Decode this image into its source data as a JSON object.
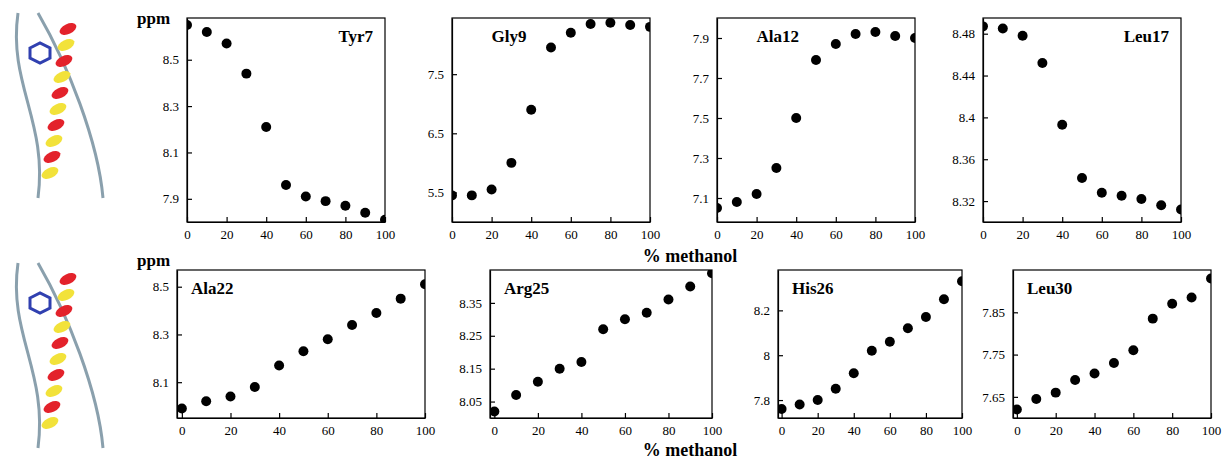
{
  "rows": [
    {
      "ylabel": "ppm",
      "xlabel": "% methanol"
    },
    {
      "ylabel": "ppm",
      "xlabel": "% methanol"
    }
  ],
  "chart_data": [
    {
      "type": "scatter",
      "title": "Tyr7",
      "color": "#000000",
      "marker": "circle",
      "x": [
        0,
        10,
        20,
        30,
        40,
        50,
        60,
        70,
        80,
        90,
        100
      ],
      "values": [
        8.65,
        8.62,
        8.57,
        8.44,
        8.21,
        7.96,
        7.91,
        7.89,
        7.87,
        7.84,
        7.81
      ],
      "xlim": [
        0,
        100
      ],
      "xticks": [
        0,
        20,
        40,
        60,
        80,
        100
      ],
      "ylim": [
        7.8,
        8.68
      ],
      "yticks": [
        7.9,
        8.1,
        8.3,
        8.5
      ]
    },
    {
      "type": "scatter",
      "title": "Gly9",
      "color": "#000000",
      "marker": "circle",
      "x": [
        0,
        10,
        20,
        30,
        40,
        50,
        60,
        70,
        80,
        90,
        100
      ],
      "values": [
        5.45,
        5.45,
        5.55,
        6.0,
        6.9,
        7.95,
        8.2,
        8.35,
        8.37,
        8.33,
        8.3
      ],
      "xlim": [
        0,
        100
      ],
      "xticks": [
        0,
        20,
        40,
        60,
        80,
        100
      ],
      "ylim": [
        5.0,
        8.45
      ],
      "yticks": [
        5.5,
        6.5,
        7.5
      ]
    },
    {
      "type": "scatter",
      "title": "Ala12",
      "color": "#000000",
      "marker": "circle",
      "x": [
        0,
        10,
        20,
        30,
        40,
        50,
        60,
        70,
        80,
        90,
        100
      ],
      "values": [
        7.05,
        7.08,
        7.12,
        7.25,
        7.5,
        7.79,
        7.87,
        7.92,
        7.93,
        7.91,
        7.9
      ],
      "xlim": [
        0,
        100
      ],
      "xticks": [
        0,
        20,
        40,
        60,
        80,
        100
      ],
      "ylim": [
        6.98,
        8.0
      ],
      "yticks": [
        7.1,
        7.3,
        7.5,
        7.7,
        7.9
      ]
    },
    {
      "type": "scatter",
      "title": "Leu17",
      "color": "#000000",
      "marker": "circle",
      "x": [
        0,
        10,
        20,
        30,
        40,
        50,
        60,
        70,
        80,
        90,
        100
      ],
      "values": [
        8.487,
        8.485,
        8.478,
        8.452,
        8.393,
        8.342,
        8.328,
        8.325,
        8.322,
        8.316,
        8.312
      ],
      "xlim": [
        0,
        100
      ],
      "xticks": [
        0,
        20,
        40,
        60,
        80,
        100
      ],
      "ylim": [
        8.3,
        8.495
      ],
      "yticks": [
        8.32,
        8.36,
        8.4,
        8.44,
        8.48
      ]
    },
    {
      "type": "scatter",
      "title": "Ala22",
      "color": "#000000",
      "marker": "circle",
      "x": [
        0,
        10,
        20,
        30,
        40,
        50,
        60,
        70,
        80,
        90,
        100
      ],
      "values": [
        7.99,
        8.02,
        8.04,
        8.08,
        8.17,
        8.23,
        8.28,
        8.34,
        8.39,
        8.45,
        8.51
      ],
      "xlim": [
        -2,
        100
      ],
      "xticks": [
        0,
        20,
        40,
        60,
        80,
        100
      ],
      "ylim": [
        7.95,
        8.57
      ],
      "yticks": [
        8.1,
        8.3,
        8.5
      ]
    },
    {
      "type": "scatter",
      "title": "Arg25",
      "color": "#000000",
      "marker": "circle",
      "x": [
        0,
        10,
        20,
        30,
        40,
        50,
        60,
        70,
        80,
        90,
        100
      ],
      "values": [
        8.02,
        8.07,
        8.11,
        8.15,
        8.17,
        8.27,
        8.3,
        8.32,
        8.36,
        8.4,
        8.44
      ],
      "xlim": [
        -2,
        100
      ],
      "xticks": [
        0,
        20,
        40,
        60,
        80,
        100
      ],
      "ylim": [
        8.0,
        8.45
      ],
      "yticks": [
        8.05,
        8.15,
        8.25,
        8.35
      ]
    },
    {
      "type": "scatter",
      "title": "His26",
      "color": "#000000",
      "marker": "circle",
      "x": [
        0,
        10,
        20,
        30,
        40,
        50,
        60,
        70,
        80,
        90,
        100
      ],
      "values": [
        7.76,
        7.78,
        7.8,
        7.85,
        7.92,
        8.02,
        8.06,
        8.12,
        8.17,
        8.25,
        8.33
      ],
      "xlim": [
        -2,
        100
      ],
      "xticks": [
        0,
        20,
        40,
        60,
        80,
        100
      ],
      "ylim": [
        7.72,
        8.38
      ],
      "yticks": [
        7.8,
        8,
        8.2
      ]
    },
    {
      "type": "scatter",
      "title": "Leu30",
      "color": "#000000",
      "marker": "circle",
      "x": [
        0,
        10,
        20,
        30,
        40,
        50,
        60,
        70,
        80,
        90,
        100
      ],
      "values": [
        7.62,
        7.645,
        7.66,
        7.69,
        7.705,
        7.73,
        7.76,
        7.835,
        7.87,
        7.885,
        7.93
      ],
      "xlim": [
        -2,
        100
      ],
      "xticks": [
        0,
        20,
        40,
        60,
        80,
        100
      ],
      "ylim": [
        7.6,
        7.95
      ],
      "yticks": [
        7.65,
        7.75,
        7.85
      ]
    }
  ]
}
